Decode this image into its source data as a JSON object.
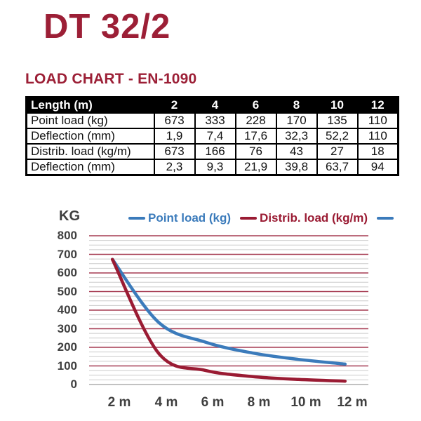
{
  "page": {
    "title": "DT 32/2",
    "subtitle": "LOAD CHART - EN-1090"
  },
  "colors": {
    "accent_maroon": "#9C1F36",
    "axis_text": "#3F3F3F",
    "table_border": "#000000",
    "table_header_bg": "#000000",
    "table_header_text": "#FFFFFF"
  },
  "table": {
    "header": [
      "Length (m)",
      "2",
      "4",
      "6",
      "8",
      "10",
      "12"
    ],
    "rows": [
      {
        "label": "Point load (kg)",
        "values": [
          "673",
          "333",
          "228",
          "170",
          "135",
          "110"
        ]
      },
      {
        "label": "Deflection (mm)",
        "values": [
          "1,9",
          "7,4",
          "17,6",
          "32,3",
          "52,2",
          "110"
        ]
      },
      {
        "label": "Distrib. load (kg/m)",
        "values": [
          "673",
          "166",
          "76",
          "43",
          "27",
          "18"
        ]
      },
      {
        "label": "Deflection (mm)",
        "values": [
          "2,3",
          "9,3",
          "21,9",
          "39,8",
          "63,7",
          "94"
        ]
      }
    ]
  },
  "chart_data": {
    "type": "line",
    "title": "",
    "y_axis_label": "KG",
    "x": [
      2,
      4,
      6,
      8,
      10,
      12
    ],
    "x_tick_labels": [
      "2 m",
      "4 m",
      "6 m",
      "8 m",
      "10 m",
      "12 m"
    ],
    "xlim": [
      1,
      13
    ],
    "ylim": [
      0,
      800
    ],
    "y_major_step": 100,
    "y_minor_step": 25,
    "grid": {
      "on": true,
      "major_color": "#A63B52",
      "minor_color": "#CBCBCB",
      "zero_color": "#ADADAD"
    },
    "legend_position": "top",
    "legend_extra_dash_color": "#3B7BBB",
    "series": [
      {
        "name": "Point load (kg)",
        "color": "#3B7BBB",
        "values": [
          673,
          333,
          228,
          170,
          135,
          110
        ]
      },
      {
        "name": "Distrib. load (kg/m)",
        "color": "#9A1B33",
        "values": [
          673,
          166,
          76,
          43,
          27,
          18
        ]
      }
    ]
  }
}
